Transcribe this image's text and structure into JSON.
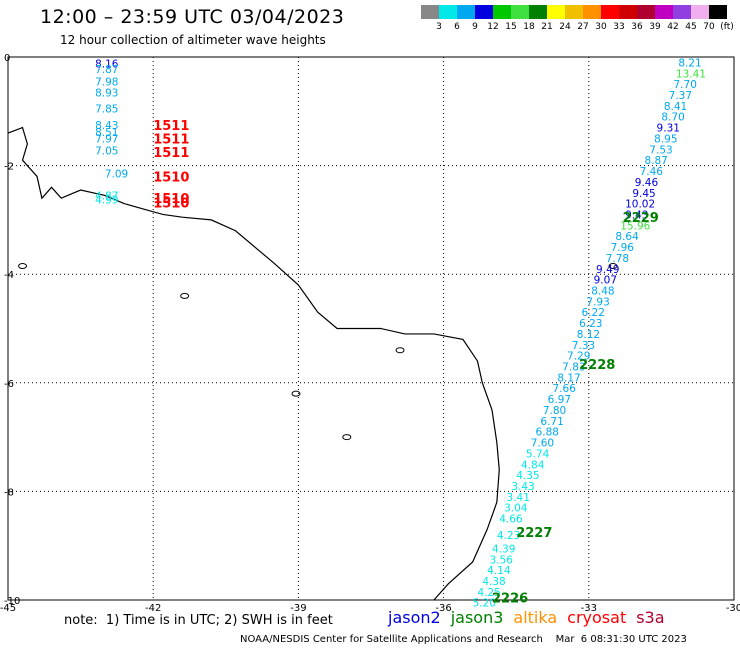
{
  "header": {
    "title": "12:00 – 23:59 UTC 03/04/2023",
    "subtitle": "12 hour collection of altimeter wave heights"
  },
  "color_scale": {
    "labels": [
      "3",
      "6",
      "9",
      "12",
      "15",
      "18",
      "21",
      "24",
      "27",
      "30",
      "33",
      "36",
      "39",
      "42",
      "45",
      "70",
      "(ft)"
    ],
    "colors": [
      "#888888",
      "#00e8e8",
      "#00a8f0",
      "#0000e0",
      "#00c800",
      "#40e040",
      "#008000",
      "#ffff00",
      "#f0c000",
      "#ff9000",
      "#ff0000",
      "#d00000",
      "#b00030",
      "#c000c0",
      "#9040e0",
      "#f0b0f0",
      "#000000"
    ]
  },
  "map": {
    "x_axis": {
      "ticks": [
        "-45",
        "-42",
        "-39",
        "-36",
        "-33",
        "-30"
      ]
    },
    "y_axis": {
      "ticks": [
        "0",
        "-2",
        "-4",
        "-6",
        "-8",
        "-10"
      ]
    },
    "tracks": [
      {
        "id": "1511/1510",
        "satellite": "cryosat",
        "label_color": "#ff0000",
        "labels": [
          {
            "text": "1511",
            "lat": -1.25,
            "lon": -42
          },
          {
            "text": "1511",
            "lat": -1.5,
            "lon": -42
          },
          {
            "text": "1511",
            "lat": -1.75,
            "lon": -42
          },
          {
            "text": "1510",
            "lat": -2.2,
            "lon": -42
          },
          {
            "text": "1510",
            "lat": -2.6,
            "lon": -42
          },
          {
            "text": "1510",
            "lat": -2.68,
            "lon": -42
          }
        ],
        "points": [
          {
            "v": "8.16",
            "lat": -0.12,
            "lon": -43.2,
            "c": "#0000e0"
          },
          {
            "v": "7.87",
            "lat": -0.22,
            "lon": -43.2,
            "c": "#00a8f0"
          },
          {
            "v": "7.98",
            "lat": -0.45,
            "lon": -43.2,
            "c": "#00a8f0"
          },
          {
            "v": "8.93",
            "lat": -0.65,
            "lon": -43.2,
            "c": "#00a8f0"
          },
          {
            "v": "7.85",
            "lat": -0.95,
            "lon": -43.2,
            "c": "#00a8f0"
          },
          {
            "v": "8.43",
            "lat": -1.25,
            "lon": -43.2,
            "c": "#00a8f0"
          },
          {
            "v": "8.51",
            "lat": -1.38,
            "lon": -43.2,
            "c": "#00a8f0"
          },
          {
            "v": "7.97",
            "lat": -1.5,
            "lon": -43.2,
            "c": "#00a8f0"
          },
          {
            "v": "7.05",
            "lat": -1.72,
            "lon": -43.2,
            "c": "#00a8f0"
          },
          {
            "v": "7.09",
            "lat": -2.15,
            "lon": -43.0,
            "c": "#00a8f0"
          },
          {
            "v": "4.87",
            "lat": -2.55,
            "lon": -43.2,
            "c": "#00e8e8"
          },
          {
            "v": "4.99",
            "lat": -2.62,
            "lon": -43.2,
            "c": "#00e8e8"
          }
        ]
      },
      {
        "id": "2229/2228/2227/2226",
        "satellite": "jason3",
        "label_color": "#008000",
        "labels": [
          {
            "text": "2229",
            "lat": -2.95,
            "lon": -32.3
          },
          {
            "text": "2228",
            "lat": -5.65,
            "lon": -33.2
          },
          {
            "text": "2227",
            "lat": -8.75,
            "lon": -34.5
          },
          {
            "text": "2226",
            "lat": -9.95,
            "lon": -35.0
          }
        ],
        "points": [
          {
            "v": "8.21",
            "lat": -0.1,
            "lon": -31.15,
            "c": "#00a8f0"
          },
          {
            "v": "13.41",
            "lat": -0.3,
            "lon": -31.2,
            "c": "#40e040"
          },
          {
            "v": "7.70",
            "lat": -0.5,
            "lon": -31.25,
            "c": "#00a8f0"
          },
          {
            "v": "7.37",
            "lat": -0.7,
            "lon": -31.35,
            "c": "#00a8f0"
          },
          {
            "v": "8.41",
            "lat": -0.9,
            "lon": -31.45,
            "c": "#00a8f0"
          },
          {
            "v": "8.70",
            "lat": -1.1,
            "lon": -31.5,
            "c": "#00a8f0"
          },
          {
            "v": "9.31",
            "lat": -1.3,
            "lon": -31.6,
            "c": "#0000e0"
          },
          {
            "v": "8.95",
            "lat": -1.5,
            "lon": -31.65,
            "c": "#00a8f0"
          },
          {
            "v": "7.53",
            "lat": -1.7,
            "lon": -31.75,
            "c": "#00a8f0"
          },
          {
            "v": "8.87",
            "lat": -1.9,
            "lon": -31.85,
            "c": "#00a8f0"
          },
          {
            "v": "7.46",
            "lat": -2.1,
            "lon": -31.95,
            "c": "#00a8f0"
          },
          {
            "v": "9.46",
            "lat": -2.3,
            "lon": -32.05,
            "c": "#0000e0"
          },
          {
            "v": "9.45",
            "lat": -2.5,
            "lon": -32.1,
            "c": "#0000e0"
          },
          {
            "v": "10.02",
            "lat": -2.7,
            "lon": -32.25,
            "c": "#0000e0"
          },
          {
            "v": "9.43",
            "lat": -2.9,
            "lon": -32.25,
            "c": "#0000e0"
          },
          {
            "v": "15.96",
            "lat": -3.1,
            "lon": -32.35,
            "c": "#40e040"
          },
          {
            "v": "8.64",
            "lat": -3.3,
            "lon": -32.45,
            "c": "#00a8f0"
          },
          {
            "v": "7.96",
            "lat": -3.5,
            "lon": -32.55,
            "c": "#00a8f0"
          },
          {
            "v": "7.78",
            "lat": -3.7,
            "lon": -32.65,
            "c": "#00a8f0"
          },
          {
            "v": "9.49",
            "lat": -3.9,
            "lon": -32.85,
            "c": "#0000e0"
          },
          {
            "v": "9.07",
            "lat": -4.1,
            "lon": -32.9,
            "c": "#0000e0"
          },
          {
            "v": "8.48",
            "lat": -4.3,
            "lon": -32.95,
            "c": "#00a8f0"
          },
          {
            "v": "7.93",
            "lat": -4.5,
            "lon": -33.05,
            "c": "#00a8f0"
          },
          {
            "v": "6.22",
            "lat": -4.7,
            "lon": -33.15,
            "c": "#00a8f0"
          },
          {
            "v": "6.23",
            "lat": -4.9,
            "lon": -33.2,
            "c": "#00a8f0"
          },
          {
            "v": "8.12",
            "lat": -5.1,
            "lon": -33.25,
            "c": "#00a8f0"
          },
          {
            "v": "7.33",
            "lat": -5.3,
            "lon": -33.35,
            "c": "#00a8f0"
          },
          {
            "v": "7.29",
            "lat": -5.5,
            "lon": -33.45,
            "c": "#00a8f0"
          },
          {
            "v": "7.83",
            "lat": -5.7,
            "lon": -33.55,
            "c": "#00a8f0"
          },
          {
            "v": "8.17",
            "lat": -5.9,
            "lon": -33.65,
            "c": "#00a8f0"
          },
          {
            "v": "7.66",
            "lat": -6.1,
            "lon": -33.75,
            "c": "#00a8f0"
          },
          {
            "v": "6.97",
            "lat": -6.3,
            "lon": -33.85,
            "c": "#00a8f0"
          },
          {
            "v": "7.80",
            "lat": -6.5,
            "lon": -33.95,
            "c": "#00a8f0"
          },
          {
            "v": "6.71",
            "lat": -6.7,
            "lon": -34.0,
            "c": "#00a8f0"
          },
          {
            "v": "6.88",
            "lat": -6.9,
            "lon": -34.1,
            "c": "#00a8f0"
          },
          {
            "v": "7.60",
            "lat": -7.1,
            "lon": -34.2,
            "c": "#00a8f0"
          },
          {
            "v": "5.74",
            "lat": -7.3,
            "lon": -34.3,
            "c": "#00e8e8"
          },
          {
            "v": "4.84",
            "lat": -7.5,
            "lon": -34.4,
            "c": "#00e8e8"
          },
          {
            "v": "4.35",
            "lat": -7.7,
            "lon": -34.5,
            "c": "#00e8e8"
          },
          {
            "v": "3.43",
            "lat": -7.9,
            "lon": -34.6,
            "c": "#00e8e8"
          },
          {
            "v": "3.41",
            "lat": -8.1,
            "lon": -34.7,
            "c": "#00e8e8"
          },
          {
            "v": "3.04",
            "lat": -8.3,
            "lon": -34.75,
            "c": "#00e8e8"
          },
          {
            "v": "4.66",
            "lat": -8.5,
            "lon": -34.85,
            "c": "#00e8e8"
          },
          {
            "v": "4.23",
            "lat": -8.8,
            "lon": -34.9,
            "c": "#00e8e8"
          },
          {
            "v": "4.39",
            "lat": -9.05,
            "lon": -35.0,
            "c": "#00e8e8"
          },
          {
            "v": "3.56",
            "lat": -9.25,
            "lon": -35.05,
            "c": "#00e8e8"
          },
          {
            "v": "4.14",
            "lat": -9.45,
            "lon": -35.1,
            "c": "#00e8e8"
          },
          {
            "v": "4.38",
            "lat": -9.65,
            "lon": -35.2,
            "c": "#00e8e8"
          },
          {
            "v": "4.25",
            "lat": -9.85,
            "lon": -35.3,
            "c": "#00e8e8"
          },
          {
            "v": "5.20",
            "lat": -10.05,
            "lon": -35.4,
            "c": "#00e8e8"
          }
        ]
      }
    ]
  },
  "footer": {
    "note": "note:  1) Time is in UTC; 2) SWH is in feet",
    "legend": [
      {
        "name": "jason2",
        "color": "#0000e0"
      },
      {
        "name": "jason3",
        "color": "#008000"
      },
      {
        "name": "altika",
        "color": "#ff9000"
      },
      {
        "name": "cryosat",
        "color": "#ff0000"
      },
      {
        "name": "s3a",
        "color": "#b00030"
      }
    ],
    "credit": "NOAA/NESDIS Center for Satellite Applications and Research    Mar  6 08:31:30 UTC 2023"
  }
}
